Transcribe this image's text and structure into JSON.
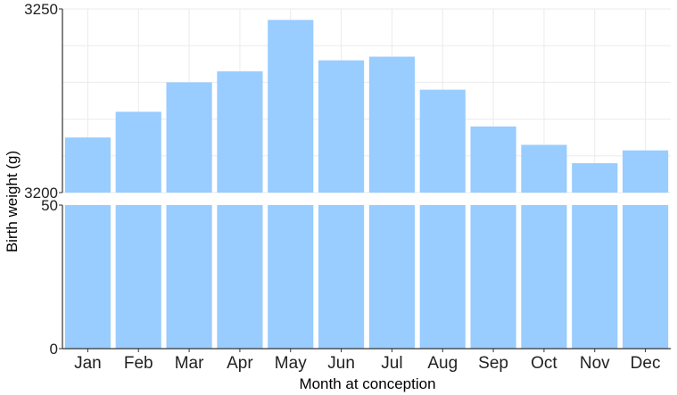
{
  "chart_data": {
    "type": "bar",
    "xlabel": "Month at conception",
    "ylabel": "Birth weight (g)",
    "categories": [
      "Jan",
      "Feb",
      "Mar",
      "Apr",
      "May",
      "Jun",
      "Jul",
      "Aug",
      "Sep",
      "Oct",
      "Nov",
      "Dec"
    ],
    "values": [
      3215,
      3222,
      3230,
      3233,
      3247,
      3236,
      3237,
      3228,
      3218,
      3213,
      3208,
      3211.5
    ],
    "axis_break": true,
    "lower_ylim": [
      0,
      50
    ],
    "lower_yticks": [
      "0",
      "50"
    ],
    "upper_ylim": [
      3200,
      3250
    ],
    "upper_yticks": [
      "3200",
      "3250"
    ],
    "grid": true,
    "bar_color": "#99ccff"
  }
}
